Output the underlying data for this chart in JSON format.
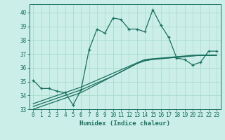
{
  "xlabel": "Humidex (Indice chaleur)",
  "bg_color": "#cceee8",
  "line_color": "#1a7060",
  "grid_color": "#aaddcc",
  "xlim": [
    -0.5,
    23.5
  ],
  "ylim": [
    33,
    40.6
  ],
  "yticks": [
    33,
    34,
    35,
    36,
    37,
    38,
    39,
    40
  ],
  "xticks": [
    0,
    1,
    2,
    3,
    4,
    5,
    6,
    7,
    8,
    9,
    10,
    11,
    12,
    13,
    14,
    15,
    16,
    17,
    18,
    19,
    20,
    21,
    22,
    23
  ],
  "main_series": [
    35.1,
    34.5,
    34.5,
    34.3,
    34.2,
    33.3,
    34.4,
    37.3,
    38.8,
    38.5,
    39.6,
    39.5,
    38.8,
    38.8,
    38.6,
    40.2,
    39.1,
    38.2,
    36.7,
    36.6,
    36.2,
    36.4,
    37.2,
    37.2
  ],
  "line1": [
    33.0,
    33.2,
    33.4,
    33.6,
    33.8,
    34.0,
    34.2,
    34.5,
    34.8,
    35.1,
    35.4,
    35.7,
    36.0,
    36.3,
    36.5,
    36.6,
    36.65,
    36.7,
    36.75,
    36.8,
    36.85,
    36.9,
    36.9,
    36.9
  ],
  "line2": [
    33.2,
    33.4,
    33.6,
    33.8,
    34.0,
    34.2,
    34.4,
    34.65,
    34.9,
    35.15,
    35.4,
    35.7,
    36.0,
    36.3,
    36.52,
    36.62,
    36.67,
    36.72,
    36.77,
    36.82,
    36.87,
    36.9,
    36.9,
    36.9
  ],
  "line3": [
    33.4,
    33.6,
    33.8,
    34.0,
    34.2,
    34.4,
    34.6,
    34.85,
    35.1,
    35.35,
    35.6,
    35.85,
    36.1,
    36.35,
    36.6,
    36.65,
    36.7,
    36.75,
    36.8,
    36.85,
    36.9,
    36.9,
    36.9,
    36.9
  ]
}
